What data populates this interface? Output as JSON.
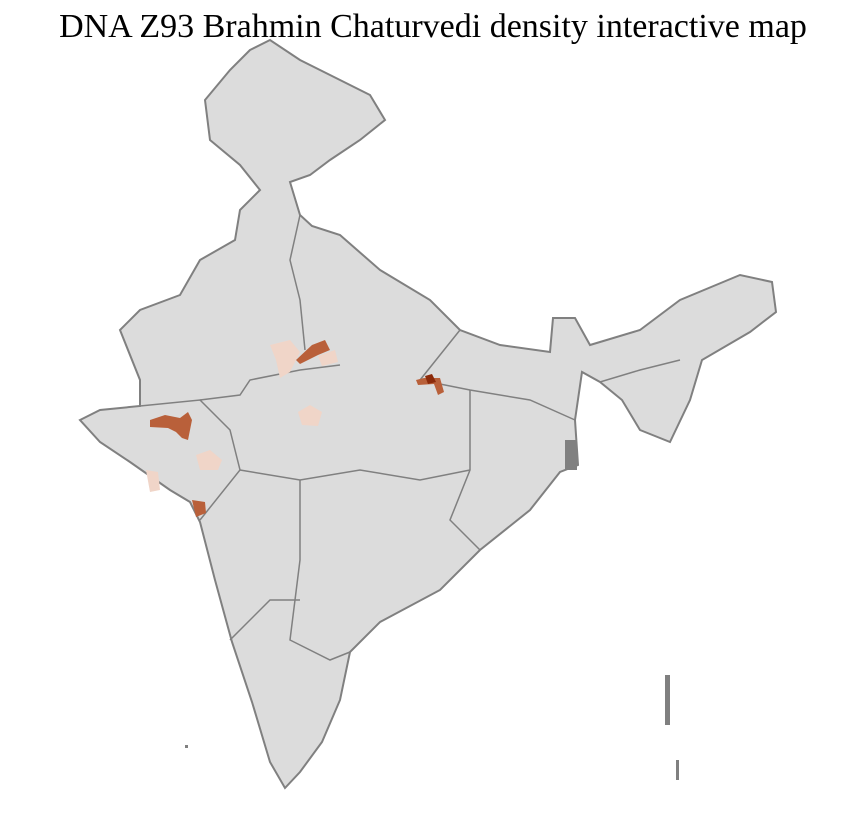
{
  "title": "DNA Z93 Brahmin Chaturvedi density interactive map",
  "colors": {
    "land": "#dcdcdc",
    "state_border": "#808080",
    "district_border": "#ffffff",
    "low": "#f0d5c8",
    "mid": "#b9603a",
    "high": "#8b2a0a"
  },
  "highlighted_regions": [
    {
      "area": "Gujarat north",
      "density": "mid"
    },
    {
      "area": "Gujarat south",
      "density": "low"
    },
    {
      "area": "Gujarat coast",
      "density": "low"
    },
    {
      "area": "Mumbai region",
      "density": "mid"
    },
    {
      "area": "Rajasthan east",
      "density": "low"
    },
    {
      "area": "Uttar Pradesh west (Agra/Mathura)",
      "density": "mid"
    },
    {
      "area": "Madhya Pradesh central",
      "density": "low"
    },
    {
      "area": "Bihar west",
      "density": "high"
    }
  ]
}
